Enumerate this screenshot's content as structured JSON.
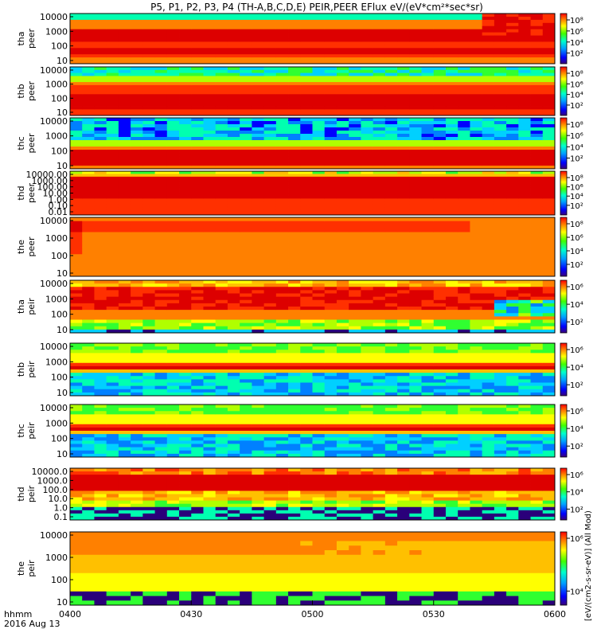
{
  "title": "P5, P1, P2, P3, P4 (TH-A,B,C,D,E) PEIR,PEER EFlux eV/(eV*cm²*sec*sr)",
  "colorbar_label": "[eV/(cm2-s-sr-eV)] (All Mod)",
  "chart_data": {
    "type": "heatmap",
    "x_axis": {
      "range": [
        "0400",
        "0600"
      ],
      "ticks": [
        "0400",
        "0430",
        "0500",
        "0530",
        "0600"
      ],
      "label_line1": "hhmm",
      "label_line2": "2016 Aug 13"
    },
    "panels": [
      {
        "id": "tha-peer",
        "ylabel": [
          "tha",
          "peer"
        ],
        "yticks": [
          "10000",
          "1000",
          "100",
          "10"
        ],
        "colorbar_ticks": [
          "10⁸",
          "10⁶",
          "10⁴",
          "10²"
        ],
        "style": "electron-a"
      },
      {
        "id": "thb-peer",
        "ylabel": [
          "thb",
          "peer"
        ],
        "yticks": [
          "10000",
          "1000",
          "100",
          "10"
        ],
        "colorbar_ticks": [
          "10⁸",
          "10⁶",
          "10⁴",
          "10²"
        ],
        "style": "electron"
      },
      {
        "id": "thc-peer",
        "ylabel": [
          "thc",
          "peer"
        ],
        "yticks": [
          "10000",
          "1000",
          "100",
          "10"
        ],
        "colorbar_ticks": [
          "10⁸",
          "10⁶",
          "10⁴",
          "10²"
        ],
        "style": "electron-noisy"
      },
      {
        "id": "thd-peer",
        "ylabel": [
          "thd",
          "peer"
        ],
        "yticks": [
          "10000.00",
          "1000.00",
          "100.00",
          "10.00",
          "1.00",
          "0.10",
          "0.01"
        ],
        "colorbar_ticks": [
          "10⁸",
          "10⁶",
          "10⁴",
          "10²"
        ],
        "style": "electron-d"
      },
      {
        "id": "the-peer",
        "ylabel": [
          "the",
          "peer"
        ],
        "yticks": [
          "10000",
          "1000",
          "100",
          "10"
        ],
        "colorbar_ticks": [
          "10⁸",
          "10⁶",
          "10⁴",
          "10²"
        ],
        "style": "electron-e"
      },
      {
        "id": "tha-peir",
        "ylabel": [
          "tha",
          "peir"
        ],
        "yticks": [
          "10000",
          "1000",
          "100",
          "10"
        ],
        "colorbar_ticks": [
          "10⁶",
          "10⁴",
          "10²"
        ],
        "style": "ion-a"
      },
      {
        "id": "thb-peir",
        "ylabel": [
          "thb",
          "peir"
        ],
        "yticks": [
          "10000",
          "1000",
          "100",
          "10"
        ],
        "colorbar_ticks": [
          "10⁶",
          "10⁴",
          "10²"
        ],
        "style": "ion-b"
      },
      {
        "id": "thc-peir",
        "ylabel": [
          "thc",
          "peir"
        ],
        "yticks": [
          "10000",
          "1000",
          "100",
          "10"
        ],
        "colorbar_ticks": [
          "10⁶",
          "10⁴",
          "10²"
        ],
        "style": "ion-b"
      },
      {
        "id": "thd-peir",
        "ylabel": [
          "thd",
          "peir"
        ],
        "yticks": [
          "10000.0",
          "1000.0",
          "100.0",
          "10.0",
          "1.0",
          "0.1"
        ],
        "colorbar_ticks": [
          "10⁶",
          "10⁴",
          "10²"
        ],
        "style": "ion-d"
      },
      {
        "id": "the-peir",
        "ylabel": [
          "the",
          "peir"
        ],
        "yticks": [
          "10000",
          "1000",
          "100",
          "10"
        ],
        "colorbar_ticks": [
          "10⁶",
          "10⁴"
        ],
        "style": "ion-e"
      }
    ]
  }
}
